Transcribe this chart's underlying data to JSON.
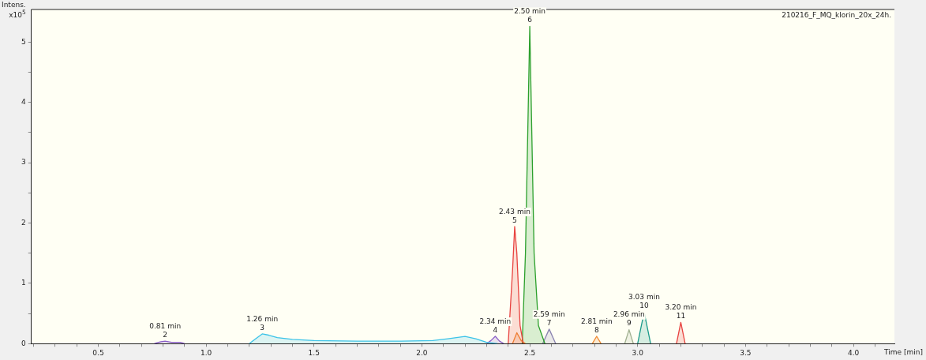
{
  "chart_data": {
    "type": "area",
    "title": "210216_F_MQ_klorin_20x_24h.",
    "xlabel": "Time [min]",
    "ylabel": "Intens.\nx10$^{5}$",
    "xlim": [
      0.19,
      4.19
    ],
    "ylim": [
      0,
      5.54
    ],
    "xticks": [
      {
        "value": 0.2,
        "label": null
      },
      {
        "value": 0.3,
        "label": null
      },
      {
        "value": 0.4,
        "label": null
      },
      0.5,
      {
        "value": 0.6,
        "label": null
      },
      {
        "value": 0.7,
        "label": null
      },
      {
        "value": 0.8,
        "label": null
      },
      {
        "value": 0.9,
        "label": null
      },
      {
        "value": 1.0,
        "label": "1.0"
      },
      {
        "value": 1.1,
        "label": null
      },
      {
        "value": 1.2,
        "label": null
      },
      {
        "value": 1.3,
        "label": null
      },
      {
        "value": 1.4,
        "label": null
      },
      1.5,
      {
        "value": 1.6,
        "label": null
      },
      {
        "value": 1.7,
        "label": null
      },
      {
        "value": 1.8,
        "label": null
      },
      {
        "value": 1.9,
        "label": null
      },
      {
        "value": 2.0,
        "label": "2.0"
      },
      {
        "value": 2.1,
        "label": null
      },
      {
        "value": 2.2,
        "label": null
      },
      {
        "value": 2.3,
        "label": null
      },
      {
        "value": 2.4,
        "label": null
      },
      2.5,
      {
        "value": 2.6,
        "label": null
      },
      {
        "value": 2.7,
        "label": null
      },
      {
        "value": 2.8,
        "label": null
      },
      {
        "value": 2.9,
        "label": null
      },
      {
        "value": 3.0,
        "label": "3.0"
      },
      {
        "value": 3.1,
        "label": null
      },
      {
        "value": 3.2,
        "label": null
      },
      {
        "value": 3.3,
        "label": null
      },
      {
        "value": 3.4,
        "label": null
      },
      3.5,
      {
        "value": 3.6,
        "label": null
      },
      {
        "value": 3.7,
        "label": null
      },
      {
        "value": 3.8,
        "label": null
      },
      {
        "value": 3.9,
        "label": null
      },
      {
        "value": 4.0,
        "label": "4.0"
      },
      {
        "value": 4.1,
        "label": null
      }
    ],
    "yticks": [
      0,
      {
        "value": 0.5,
        "label": null
      },
      1,
      {
        "value": 1.5,
        "label": null
      },
      2,
      {
        "value": 2.5,
        "label": null
      },
      3,
      {
        "value": 3.5,
        "label": null
      },
      4,
      {
        "value": 4.5,
        "label": null
      },
      5
    ],
    "legend": false,
    "marker": "none",
    "series": [
      {
        "color": "#8a5ec8",
        "x": [
          0.76,
          0.79,
          0.81,
          0.84,
          0.88,
          0.9
        ],
        "values": [
          0,
          0.03,
          0.04,
          0.02,
          0.02,
          0
        ]
      },
      {
        "color": "#3cc3e8",
        "x": [
          1.2,
          1.23,
          1.26,
          1.29,
          1.33,
          1.4,
          1.5,
          1.7,
          1.9,
          2.05,
          2.12,
          2.2,
          2.25,
          2.3,
          2.35
        ],
        "values": [
          0,
          0.08,
          0.16,
          0.14,
          0.1,
          0.07,
          0.05,
          0.04,
          0.04,
          0.05,
          0.08,
          0.12,
          0.08,
          0.02,
          0
        ]
      },
      {
        "color": "#8a5ec8",
        "x": [
          2.3,
          2.32,
          2.34,
          2.36,
          2.38
        ],
        "values": [
          0,
          0.05,
          0.12,
          0.04,
          0
        ]
      },
      {
        "color": "#e8423f",
        "x": [
          2.4,
          2.42,
          2.43,
          2.44,
          2.455,
          2.47
        ],
        "values": [
          0,
          1.2,
          1.94,
          1.5,
          0.3,
          0
        ]
      },
      {
        "color": "#f08a30",
        "x": [
          2.42,
          2.44,
          2.46,
          2.48
        ],
        "values": [
          0,
          0.18,
          0.05,
          0
        ]
      },
      {
        "color": "#2ca02c",
        "x": [
          2.465,
          2.48,
          2.5,
          2.52,
          2.54,
          2.57
        ],
        "values": [
          0,
          1.5,
          5.26,
          1.5,
          0.3,
          0
        ]
      },
      {
        "color": "#8a84b0",
        "x": [
          2.56,
          2.59,
          2.62
        ],
        "values": [
          0,
          0.24,
          0
        ]
      },
      {
        "color": "#f08a30",
        "x": [
          2.79,
          2.81,
          2.83
        ],
        "values": [
          0,
          0.12,
          0
        ]
      },
      {
        "color": "#a0b090",
        "x": [
          2.94,
          2.96,
          2.98
        ],
        "values": [
          0,
          0.23,
          0
        ]
      },
      {
        "color": "#1a9a8a",
        "x": [
          3.0,
          3.03,
          3.06
        ],
        "values": [
          0,
          0.52,
          0
        ]
      },
      {
        "color": "#e8423f",
        "x": [
          3.18,
          3.2,
          3.22
        ],
        "values": [
          0,
          0.35,
          0
        ]
      }
    ],
    "annotations": [
      {
        "text": "0.81 min\n2",
        "x": 0.81,
        "y": 0.04
      },
      {
        "text": "1.26 min\n3",
        "x": 1.26,
        "y": 0.16
      },
      {
        "text": "2.34 min\n4",
        "x": 2.34,
        "y": 0.12
      },
      {
        "text": "2.43 min\n5",
        "x": 2.43,
        "y": 1.94
      },
      {
        "text": "2.50 min\n6",
        "x": 2.5,
        "y": 5.26
      },
      {
        "text": "2.59 min\n7",
        "x": 2.59,
        "y": 0.24
      },
      {
        "text": "2.81 min\n8",
        "x": 2.81,
        "y": 0.12
      },
      {
        "text": "2.96 min\n9",
        "x": 2.96,
        "y": 0.23
      },
      {
        "text": "3.03 min\n10",
        "x": 3.03,
        "y": 0.52
      },
      {
        "text": "3.20 min\n11",
        "x": 3.2,
        "y": 0.35
      }
    ]
  }
}
